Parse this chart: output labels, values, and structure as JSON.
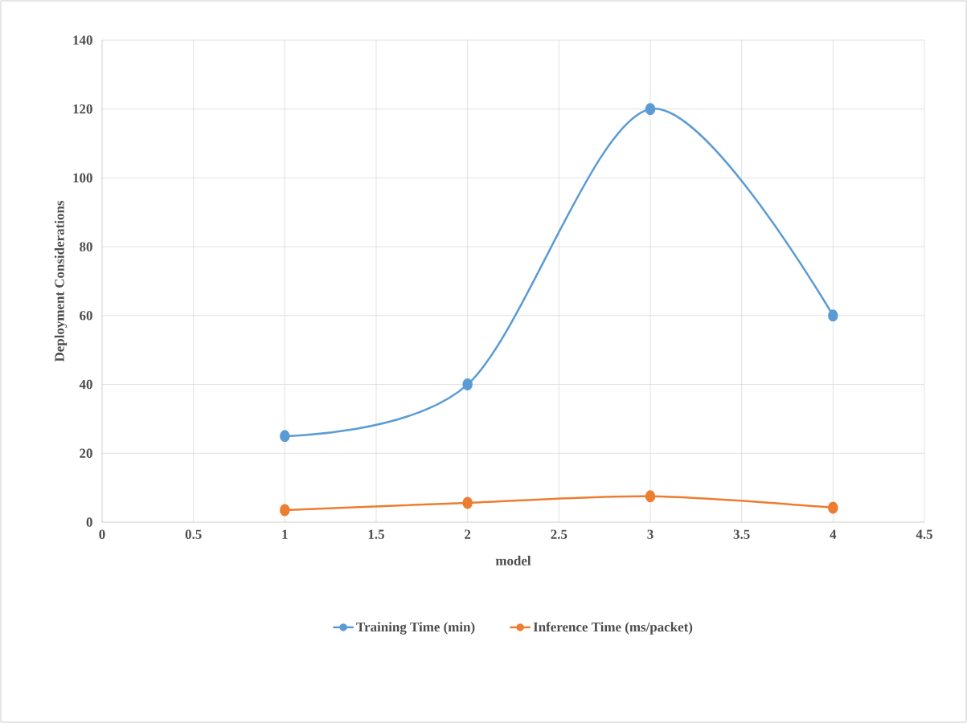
{
  "chart_data": {
    "type": "line",
    "xlabel": "model",
    "ylabel": "Deployment  Considerations",
    "x": [
      1,
      2,
      3,
      4
    ],
    "series": [
      {
        "name": "Training Time (min)",
        "color": "#5b9bd5",
        "values": [
          25,
          40,
          120,
          60
        ]
      },
      {
        "name": "Inference Time (ms/packet)",
        "color": "#ed7d31",
        "values": [
          3.5,
          5.6,
          7.5,
          4.2
        ]
      }
    ],
    "xlim": [
      0,
      4.5
    ],
    "xticks": [
      0,
      0.5,
      1,
      1.5,
      2,
      2.5,
      3,
      3.5,
      4,
      4.5
    ],
    "ylim": [
      0,
      140
    ],
    "yticks": [
      0,
      20,
      40,
      60,
      80,
      100,
      120,
      140
    ],
    "grid": true,
    "legend": "bottom",
    "marker": "circle",
    "line_style": "solid"
  }
}
